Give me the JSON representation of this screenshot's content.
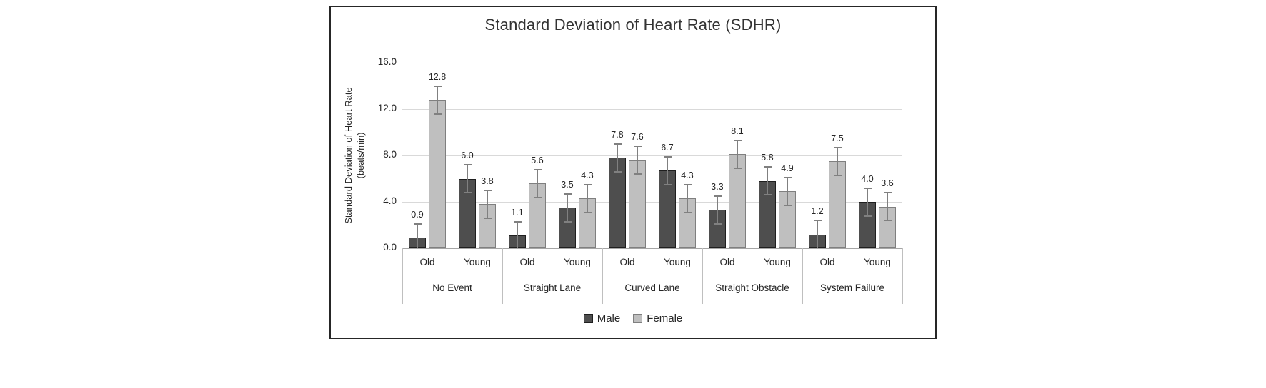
{
  "chart_data": {
    "type": "bar",
    "title": "Standard Deviation of Heart Rate (SDHR)",
    "ylabel_line1": "Standard Deviation of Heart Rate",
    "ylabel_line2": "(beats/min)",
    "ylim": [
      0,
      16
    ],
    "ytick_values": [
      0,
      4,
      8,
      12,
      16
    ],
    "ytick_labels": [
      "0.0",
      "4.0",
      "8.0",
      "12.0",
      "16.0"
    ],
    "grid": true,
    "legend_position": "bottom",
    "error_bar_estimate": 1.2,
    "series": [
      {
        "name": "Male",
        "color": "#4e4e4e",
        "border": "#1f1f1f"
      },
      {
        "name": "Female",
        "color": "#bfbfbf",
        "border": "#7f7f7f"
      }
    ],
    "groups": [
      {
        "label": "No Event",
        "subgroups": [
          {
            "label": "Old",
            "values": {
              "Male": 0.9,
              "Female": 12.8
            }
          },
          {
            "label": "Young",
            "values": {
              "Male": 6.0,
              "Female": 3.8
            }
          }
        ]
      },
      {
        "label": "Straight Lane",
        "subgroups": [
          {
            "label": "Old",
            "values": {
              "Male": 1.1,
              "Female": 5.6
            }
          },
          {
            "label": "Young",
            "values": {
              "Male": 3.5,
              "Female": 4.3
            }
          }
        ]
      },
      {
        "label": "Curved Lane",
        "subgroups": [
          {
            "label": "Old",
            "values": {
              "Male": 7.8,
              "Female": 7.6
            }
          },
          {
            "label": "Young",
            "values": {
              "Male": 6.7,
              "Female": 4.3
            }
          }
        ]
      },
      {
        "label": "Straight Obstacle",
        "subgroups": [
          {
            "label": "Old",
            "values": {
              "Male": 3.3,
              "Female": 8.1
            }
          },
          {
            "label": "Young",
            "values": {
              "Male": 5.8,
              "Female": 4.9
            }
          }
        ]
      },
      {
        "label": "System Failure",
        "subgroups": [
          {
            "label": "Old",
            "values": {
              "Male": 1.2,
              "Female": 7.5
            }
          },
          {
            "label": "Young",
            "values": {
              "Male": 4.0,
              "Female": 3.6
            }
          }
        ]
      }
    ],
    "colors": {
      "gridline": "#d9d9d9",
      "axis_line": "#a6a6a6",
      "error_bar": "#808080",
      "separator": "#bfbfbf",
      "text": "#262626"
    }
  }
}
